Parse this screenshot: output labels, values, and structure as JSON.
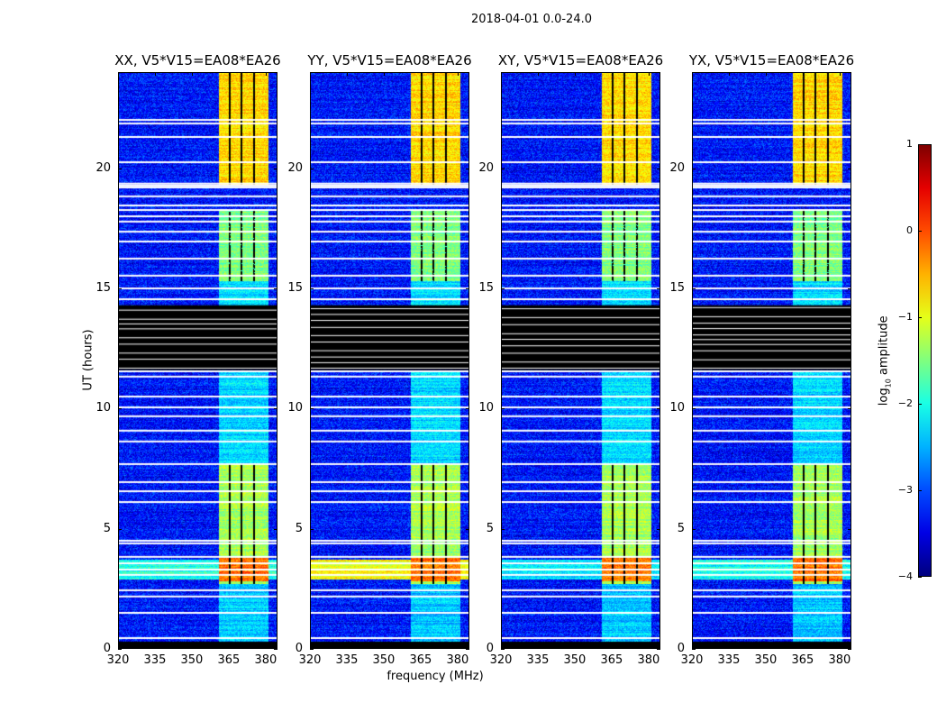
{
  "figure_title": "2018-04-01 0.0-24.0",
  "chart_data": {
    "type": "heatmap",
    "title": "2018-04-01 0.0-24.0",
    "xlabel": "frequency (MHz)",
    "ylabel": "UT (hours)",
    "xlim": [
      320,
      384.8
    ],
    "ylim": [
      0,
      24
    ],
    "xticks": [
      "320",
      "335",
      "350",
      "365",
      "380"
    ],
    "xtick_values": [
      320,
      335,
      350,
      365,
      380
    ],
    "yticks": [
      "0",
      "5",
      "10",
      "15",
      "20"
    ],
    "ytick_values": [
      0,
      5,
      10,
      15,
      20
    ],
    "colormap": "jet",
    "colorbar": {
      "label_main": "log",
      "label_sub": "10",
      "label_rest": " amplitude",
      "range": [
        -4,
        1
      ],
      "ticks": [
        "1",
        "0",
        "−1",
        "−2",
        "−3",
        "−4"
      ],
      "tick_values": [
        1,
        0,
        -1,
        -2,
        -3,
        -4
      ]
    },
    "panels": [
      {
        "title": "XX, V5*V15=EA08*EA26",
        "band_level": -2.0
      },
      {
        "title": "YY, V5*V15=EA08*EA26",
        "band_level": -0.9
      },
      {
        "title": "XY, V5*V15=EA08*EA26",
        "band_level": -2.2
      },
      {
        "title": "YX, V5*V15=EA08*EA26",
        "band_level": -2.0
      }
    ],
    "background_level": -3.3,
    "rfi_band_mhz": [
      361,
      381
    ],
    "rfi_subband_gaps_mhz": [
      365.3,
      370.3,
      375.3
    ],
    "rfi_levels": [
      {
        "hours": [
          0.3,
          2.7
        ],
        "level": -2.4
      },
      {
        "hours": [
          2.7,
          7.7
        ],
        "level": -1.3
      },
      {
        "hours": [
          2.8,
          3.8
        ],
        "level": -0.2
      },
      {
        "hours": [
          7.7,
          11.6
        ],
        "level": -2.3
      },
      {
        "hours": [
          14.3,
          15.3
        ],
        "level": -2.3
      },
      {
        "hours": [
          15.3,
          18.3
        ],
        "level": -1.5
      },
      {
        "hours": [
          19.3,
          24.0
        ],
        "level": -0.7
      }
    ],
    "all_freq_band_hours": [
      2.9,
      3.7
    ],
    "flagged_black_hours": [
      [
        0.0,
        0.3
      ],
      [
        11.6,
        14.3
      ]
    ],
    "flagged_white_hours": [
      0.45,
      1.5,
      2.18,
      2.44,
      3.08,
      3.3,
      3.56,
      3.83,
      4.39,
      4.5,
      6.11,
      6.56,
      6.94,
      7.69,
      8.63,
      9.08,
      9.68,
      10.05,
      10.5,
      11.33,
      11.55,
      14.55,
      15.0,
      15.53,
      16.24,
      16.95,
      17.36,
      17.78,
      18.0,
      18.26,
      18.45,
      18.83,
      19.2,
      19.28,
      19.36,
      20.25,
      21.3,
      21.86,
      22.01
    ]
  }
}
